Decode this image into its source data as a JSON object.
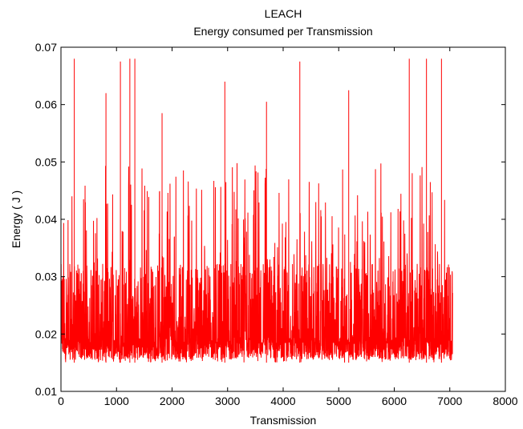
{
  "chart_data": {
    "type": "line",
    "title": "LEACH",
    "subtitle": "Energy consumed per Transmission",
    "xlabel": "Transmission",
    "ylabel": "Energy ( J )",
    "xlim": [
      0,
      8000
    ],
    "ylim": [
      0.01,
      0.07
    ],
    "xticks": [
      "0",
      "1000",
      "2000",
      "3000",
      "4000",
      "5000",
      "6000",
      "7000",
      "8000"
    ],
    "yticks": [
      "0.01",
      "0.02",
      "0.03",
      "0.04",
      "0.05",
      "0.06",
      "0.07"
    ],
    "grid": false,
    "series": [
      {
        "color": "#ff0000",
        "x_range": [
          0,
          7050
        ],
        "typical_range": [
          0.015,
          0.03
        ],
        "min": 0.0135,
        "max": 0.0685,
        "peaks": [
          {
            "x": 240,
            "y": 0.068
          },
          {
            "x": 810,
            "y": 0.062
          },
          {
            "x": 1070,
            "y": 0.0675
          },
          {
            "x": 1240,
            "y": 0.068
          },
          {
            "x": 1330,
            "y": 0.068
          },
          {
            "x": 1820,
            "y": 0.0585
          },
          {
            "x": 2950,
            "y": 0.064
          },
          {
            "x": 3700,
            "y": 0.0605
          },
          {
            "x": 4300,
            "y": 0.0675
          },
          {
            "x": 5180,
            "y": 0.0625
          },
          {
            "x": 6270,
            "y": 0.068
          },
          {
            "x": 6580,
            "y": 0.068
          },
          {
            "x": 6850,
            "y": 0.068
          }
        ]
      }
    ]
  }
}
